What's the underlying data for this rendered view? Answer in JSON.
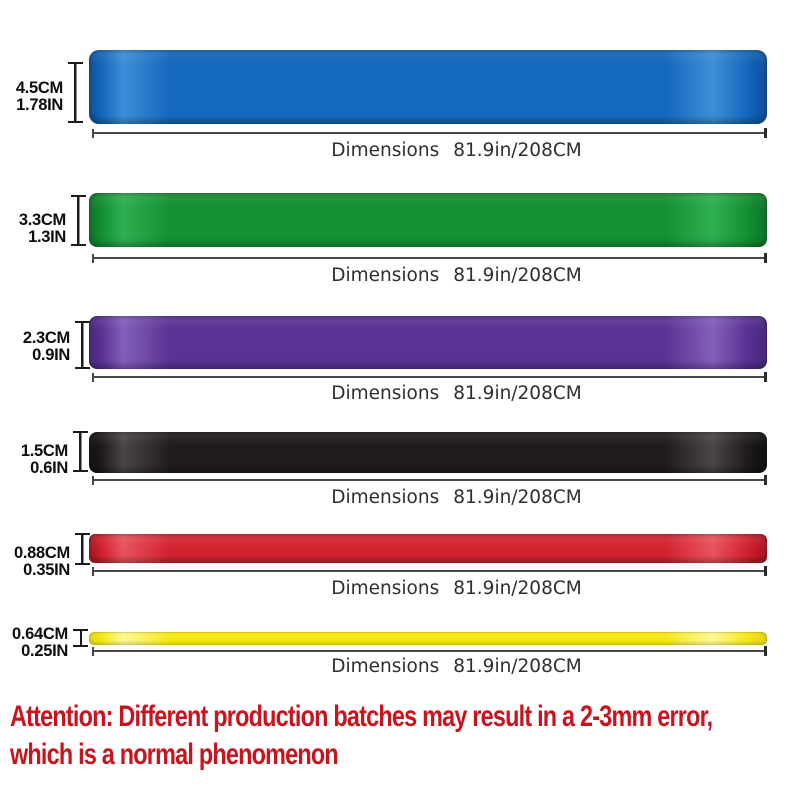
{
  "rows": [
    {
      "color_name": "blue",
      "cm": "4.5CM",
      "in": "1.78IN",
      "band_color": "#1468bd",
      "band_light": "#3e8ed6",
      "band_dark": "#0c4f9a",
      "dim_label": "Dimensions",
      "dim_value": "81.9in/208CM"
    },
    {
      "color_name": "green",
      "cm": "3.3CM",
      "in": "1.3IN",
      "band_color": "#159033",
      "band_light": "#2fae52",
      "band_dark": "#0b7426",
      "dim_label": "Dimensions",
      "dim_value": "81.9in/208CM"
    },
    {
      "color_name": "purple",
      "cm": "2.3CM",
      "in": "0.9IN",
      "band_color": "#5a3294",
      "band_light": "#8260b8",
      "band_dark": "#46257c",
      "dim_label": "Dimensions",
      "dim_value": "81.9in/208CM"
    },
    {
      "color_name": "black",
      "cm": "1.5CM",
      "in": "0.6IN",
      "band_color": "#201c1e",
      "band_light": "#4a4547",
      "band_dark": "#0d0b0c",
      "dim_label": "Dimensions",
      "dim_value": "81.9in/208CM"
    },
    {
      "color_name": "red",
      "cm": "0.88CM",
      "in": "0.35IN",
      "band_color": "#d22230",
      "band_light": "#e8545f",
      "band_dark": "#a8121f",
      "dim_label": "Dimensions",
      "dim_value": "81.9in/208CM"
    },
    {
      "color_name": "yellow",
      "cm": "0.64CM",
      "in": "0.25IN",
      "band_color": "#f6e71e",
      "band_light": "#fdf894",
      "band_dark": "#e3d214",
      "dim_label": "Dimensions",
      "dim_value": "81.9in/208CM"
    }
  ],
  "attention": {
    "line1": "Attention: Different production batches may result in a 2-3mm error,",
    "line2": "which is a normal phenomenon",
    "color": "#c8141d"
  }
}
